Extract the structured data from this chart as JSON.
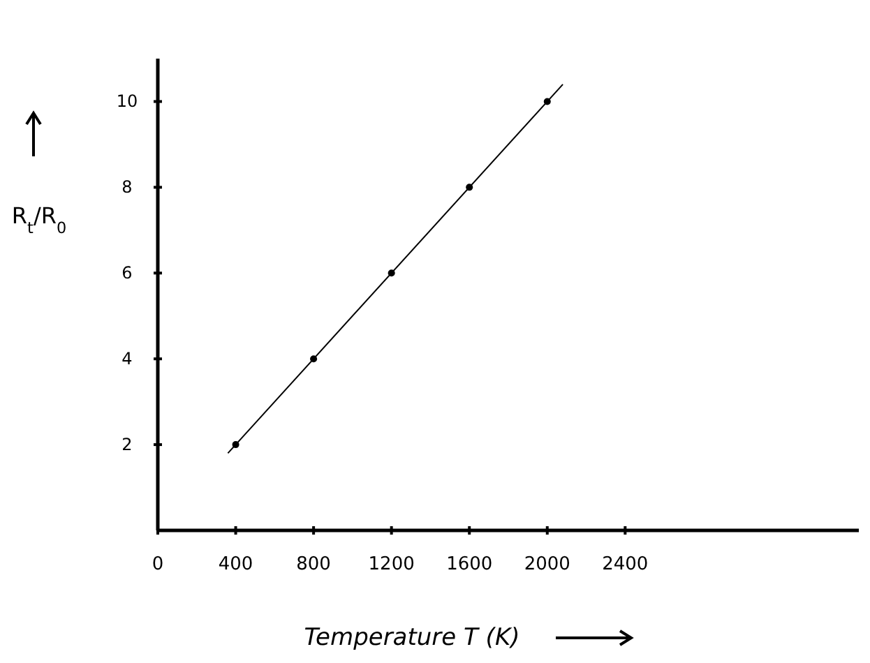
{
  "chart_data": {
    "type": "scatter",
    "xlabel": "Temperature T (K)",
    "ylabel": "R$_{t}$/R$_{0}$",
    "xlim": [
      0,
      3600
    ],
    "ylim": [
      0,
      11
    ],
    "xticks": [
      0,
      400,
      800,
      1200,
      1600,
      2000,
      2400
    ],
    "yticks": [
      2,
      4,
      6,
      8,
      10
    ],
    "marker": "circle",
    "grid": false,
    "series": [
      {
        "type": "scatter",
        "color": "#000000",
        "x": [
          400,
          800,
          1200,
          1600,
          2000
        ],
        "values": [
          2,
          4,
          6,
          8,
          10
        ]
      },
      {
        "type": "line",
        "color": "#000000",
        "x": [
          360,
          2080
        ],
        "values": [
          1.8,
          10.4
        ],
        "marker": "none"
      }
    ]
  }
}
